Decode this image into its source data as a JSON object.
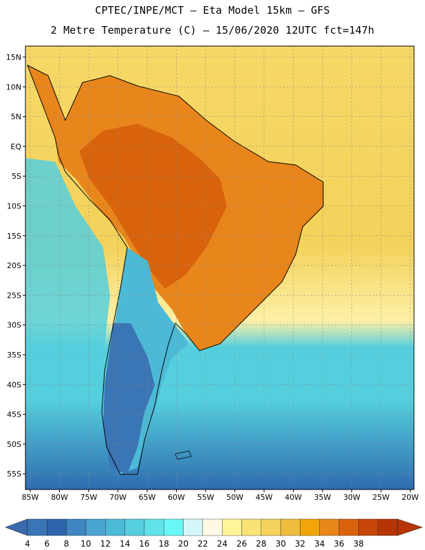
{
  "title_line1": "CPTEC/INPE/MCT –   Eta Model 15km – GFS",
  "title_line2": "2 Metre Temperature (C) – 15/06/2020 12UTC fct=147h",
  "lat_labels": [
    "15N",
    "10N",
    "5N",
    "EQ",
    "5S",
    "10S",
    "15S",
    "20S",
    "25S",
    "30S",
    "35S",
    "40S",
    "45S",
    "50S",
    "55S"
  ],
  "lon_labels": [
    "85W",
    "80W",
    "75W",
    "70W",
    "65W",
    "60W",
    "55W",
    "50W",
    "45W",
    "40W",
    "35W",
    "30W",
    "25W",
    "20W"
  ],
  "colorbar": {
    "labels": [
      "4",
      "6",
      "8",
      "10",
      "12",
      "14",
      "16",
      "18",
      "20",
      "22",
      "24",
      "26",
      "28",
      "30",
      "32",
      "34",
      "36",
      "38"
    ],
    "colors": [
      "#3a75b5",
      "#2e66ae",
      "#3f86c2",
      "#4aa4d0",
      "#4cbad6",
      "#55cfdd",
      "#5fe2e8",
      "#6af6f6",
      "#d4f6fb",
      "#fff8e4",
      "#fef598",
      "#f8e375",
      "#f4d25b",
      "#efbd3d",
      "#f1a508",
      "#e8861c",
      "#d9630c",
      "#c74508",
      "#b73505"
    ],
    "low_end": "#3a6ab0",
    "high_end": "#b73505"
  },
  "map": {
    "ocean_north": "#f6d867",
    "ocean_tropical": "#f4d25b",
    "ocean_warm_edge": "#fdf0a6",
    "ocean_cool": "#55cfdd",
    "ocean_cold": "#2e6bb0",
    "land_hot": "#d9630c",
    "land_warm": "#e8861c",
    "land_cool": "#4cbad6",
    "land_cold": "#3a75b5"
  }
}
